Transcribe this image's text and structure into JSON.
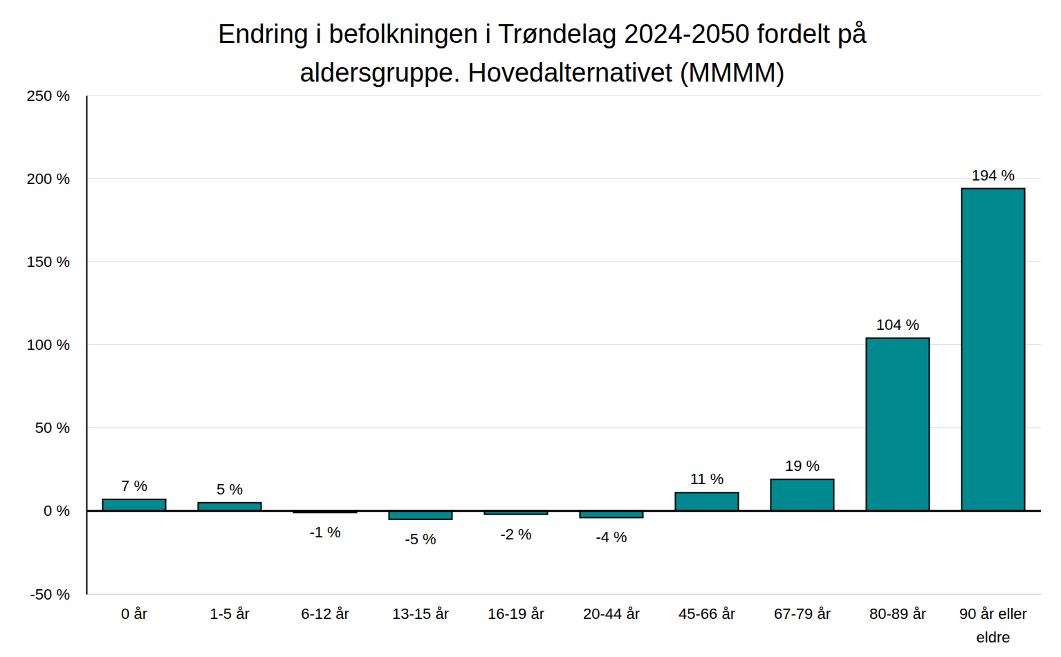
{
  "chart_data": {
    "type": "bar",
    "title": "Endring i befolkningen i Trøndelag 2024-2050 fordelt på aldersgruppe. Hovedalternativet (MMMM)",
    "categories": [
      "0 år",
      "1-5 år",
      "6-12 år",
      "13-15 år",
      "16-19 år",
      "20-44 år",
      "45-66 år",
      "67-79 år",
      "80-89 år",
      "90 år eller eldre"
    ],
    "values": [
      7,
      5,
      -1,
      -5,
      -2,
      -4,
      11,
      19,
      104,
      194
    ],
    "value_labels": [
      "7 %",
      "5 %",
      "-1 %",
      "-5 %",
      "-2 %",
      "-4 %",
      "11 %",
      "19 %",
      "104 %",
      "194 %"
    ],
    "color": "#00898f",
    "ylim": [
      -50,
      250
    ],
    "yticks": [
      {
        "value": -50,
        "label": "-50 %"
      },
      {
        "value": 0,
        "label": "0 %"
      },
      {
        "value": 50,
        "label": "50 %"
      },
      {
        "value": 100,
        "label": "100 %"
      },
      {
        "value": 150,
        "label": "150 %"
      },
      {
        "value": 200,
        "label": "200 %"
      },
      {
        "value": 250,
        "label": "250 %"
      }
    ],
    "grid": true,
    "data_labels": true
  }
}
